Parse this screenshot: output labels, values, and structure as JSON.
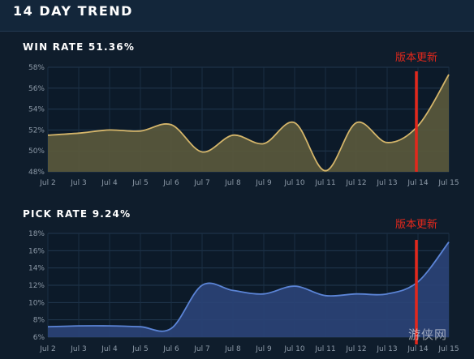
{
  "header": {
    "title": "14 DAY TREND"
  },
  "watermark": "游侠网",
  "chart_data": [
    {
      "type": "area",
      "title": "WIN RATE 51.36%",
      "categories": [
        "Jul 2",
        "Jul 3",
        "Jul 4",
        "Jul 5",
        "Jul 6",
        "Jul 7",
        "Jul 8",
        "Jul 9",
        "Jul 10",
        "Jul 11",
        "Jul 12",
        "Jul 13",
        "Jul 14",
        "Jul 15"
      ],
      "values": [
        51.5,
        51.7,
        52.0,
        51.9,
        52.5,
        49.9,
        51.5,
        50.7,
        52.7,
        48.1,
        52.7,
        50.8,
        52.4,
        57.3
      ],
      "ylim": [
        48,
        58
      ],
      "yticks": [
        "48%",
        "50%",
        "52%",
        "54%",
        "56%",
        "58%"
      ],
      "grid": true,
      "colors": {
        "line": "#d4b56a",
        "fill": "#5b5a3c"
      },
      "annotation": {
        "text": "版本更新",
        "x": "Jul 14",
        "color": "#e3281c"
      }
    },
    {
      "type": "area",
      "title": "PICK RATE 9.24%",
      "categories": [
        "Jul 2",
        "Jul 3",
        "Jul 4",
        "Jul 5",
        "Jul 6",
        "Jul 7",
        "Jul 8",
        "Jul 9",
        "Jul 10",
        "Jul 11",
        "Jul 12",
        "Jul 13",
        "Jul 14",
        "Jul 15"
      ],
      "values": [
        7.2,
        7.3,
        7.3,
        7.2,
        7.0,
        12.0,
        11.4,
        11.0,
        11.9,
        10.8,
        11.0,
        11.0,
        12.4,
        17.0
      ],
      "ylim": [
        6,
        18
      ],
      "yticks": [
        "6%",
        "8%",
        "10%",
        "12%",
        "14%",
        "16%",
        "18%"
      ],
      "grid": true,
      "colors": {
        "line": "#5b84d6",
        "fill": "#2b4478"
      },
      "annotation": {
        "text": "版本更新",
        "x": "Jul 14",
        "color": "#e3281c"
      }
    }
  ]
}
